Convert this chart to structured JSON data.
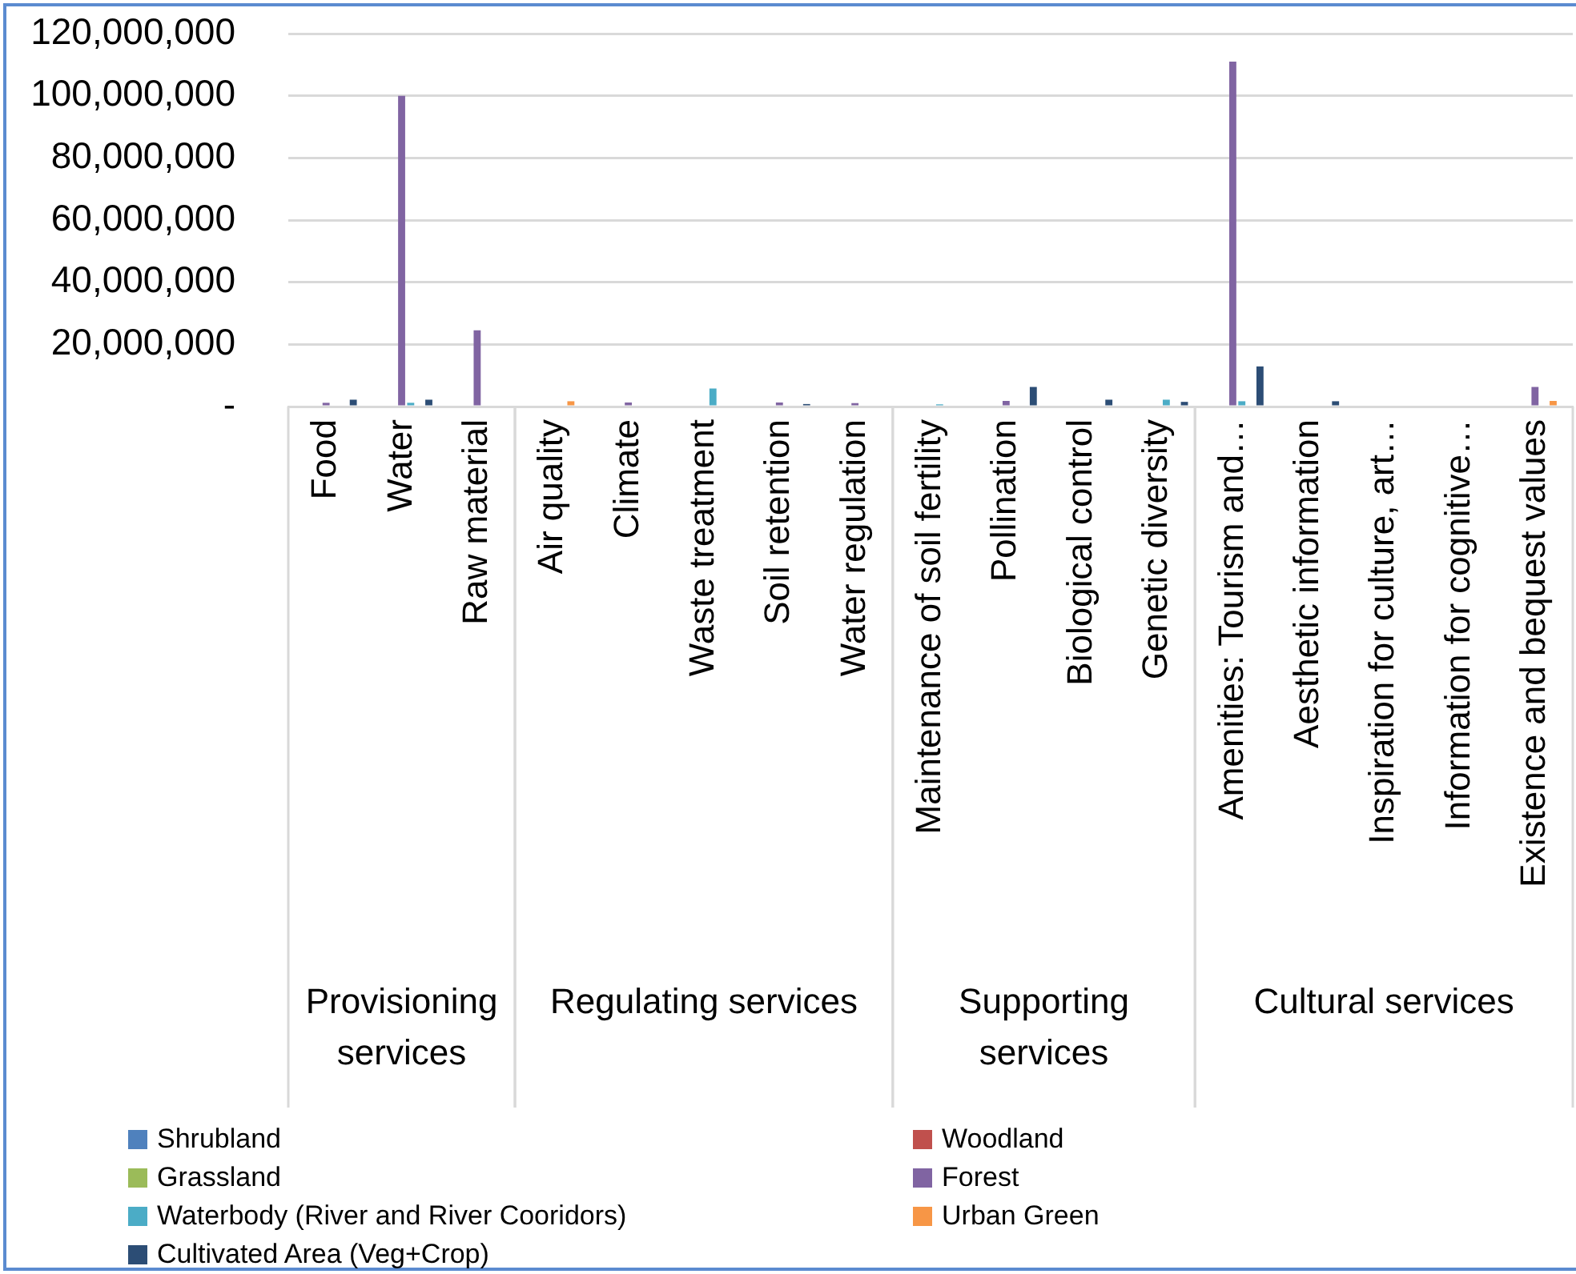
{
  "chart_data": {
    "type": "bar",
    "categories": [
      "Food",
      "Water",
      "Raw material",
      "Air quality",
      "Climate",
      "Waste treatment",
      "Soil retention",
      "Water regulation",
      "Maintenance of soil fertility",
      "Pollination",
      "Biological control",
      "Genetic diversity",
      "Amenities: Tourism and…",
      "Aesthetic information",
      "Inspiration for culture, art…",
      "Information for cognitive…",
      "Existence and bequest values"
    ],
    "series": [
      {
        "name": "Shrubland",
        "color": "#4f81bd",
        "values": [
          null,
          null,
          null,
          null,
          null,
          null,
          null,
          null,
          null,
          null,
          null,
          null,
          null,
          null,
          null,
          null,
          null
        ]
      },
      {
        "name": "Woodland",
        "color": "#c0504d",
        "values": [
          null,
          null,
          null,
          null,
          null,
          null,
          null,
          null,
          null,
          null,
          null,
          null,
          null,
          null,
          null,
          null,
          null
        ]
      },
      {
        "name": "Grassland",
        "color": "#9bbb59",
        "values": [
          null,
          null,
          null,
          null,
          null,
          null,
          null,
          null,
          null,
          null,
          null,
          null,
          null,
          null,
          null,
          null,
          null
        ]
      },
      {
        "name": "Forest",
        "color": "#8064a2",
        "values": [
          1200000,
          100000000,
          24500000,
          null,
          1300000,
          null,
          1300000,
          1100000,
          null,
          1800000,
          null,
          null,
          111000000,
          null,
          null,
          null,
          6300000
        ]
      },
      {
        "name": "Waterbody (River and River Cooridors)",
        "color": "#4bacc6",
        "values": [
          null,
          1200000,
          null,
          null,
          null,
          5800000,
          null,
          null,
          700000,
          null,
          null,
          2200000,
          1700000,
          null,
          null,
          null,
          null
        ]
      },
      {
        "name": "Urban Green",
        "color": "#f79646",
        "values": [
          null,
          null,
          null,
          1700000,
          null,
          null,
          null,
          null,
          null,
          null,
          null,
          null,
          null,
          null,
          null,
          null,
          1800000
        ]
      },
      {
        "name": "Cultivated Area (Veg+Crop)",
        "color": "#2c4d75",
        "values": [
          2200000,
          2200000,
          null,
          null,
          null,
          null,
          800000,
          null,
          null,
          6300000,
          2200000,
          1500000,
          12900000,
          1700000,
          null,
          null,
          null
        ]
      }
    ],
    "ylim": [
      0,
      120000000
    ],
    "yticks": [
      {
        "value": 0,
        "label": "-"
      },
      {
        "value": 20000000,
        "label": "20,000,000"
      },
      {
        "value": 40000000,
        "label": "40,000,000"
      },
      {
        "value": 60000000,
        "label": "60,000,000"
      },
      {
        "value": 80000000,
        "label": "80,000,000"
      },
      {
        "value": 100000000,
        "label": "100,000,000"
      },
      {
        "value": 120000000,
        "label": "120,000,000"
      }
    ],
    "annotations": [
      "Provisioning services",
      "Regulating services",
      "Supporting services",
      "Cultural services"
    ],
    "grid": "y",
    "legend": "bottom"
  }
}
